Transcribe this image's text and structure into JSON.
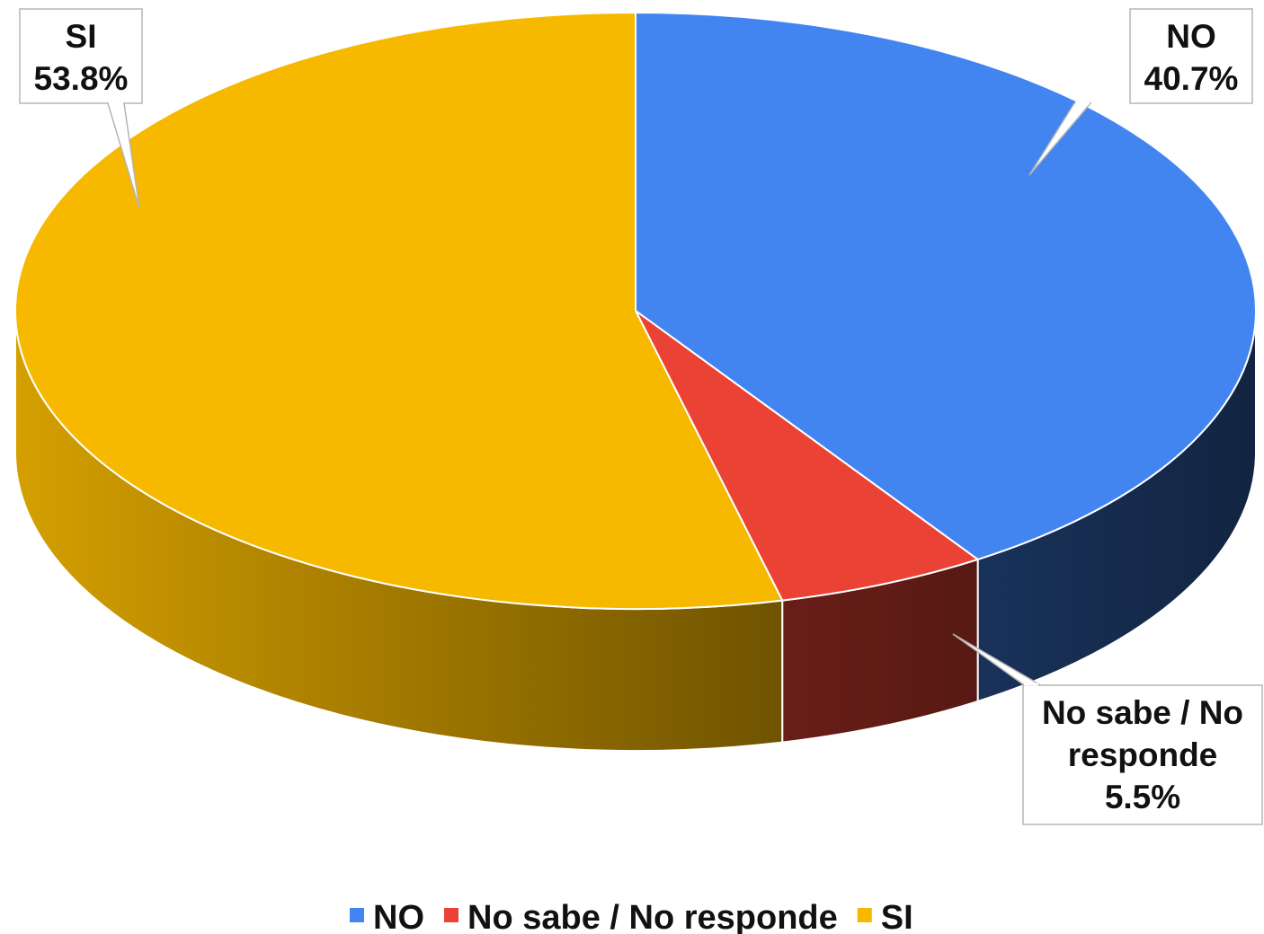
{
  "chart_data": {
    "type": "pie",
    "style": "3d",
    "slices": [
      {
        "label": "NO",
        "value": 40.7,
        "value_label": "40.7%",
        "color": "#4285F0"
      },
      {
        "label": "No sabe / No responde",
        "value": 5.5,
        "value_label": "5.5%",
        "color": "#EA4335"
      },
      {
        "label": "SI",
        "value": 53.8,
        "value_label": "53.8%",
        "color": "#F6B900"
      }
    ],
    "legend": {
      "placement": "bottom",
      "entries": [
        "NO",
        "No sabe / No responde",
        "SI"
      ]
    }
  }
}
